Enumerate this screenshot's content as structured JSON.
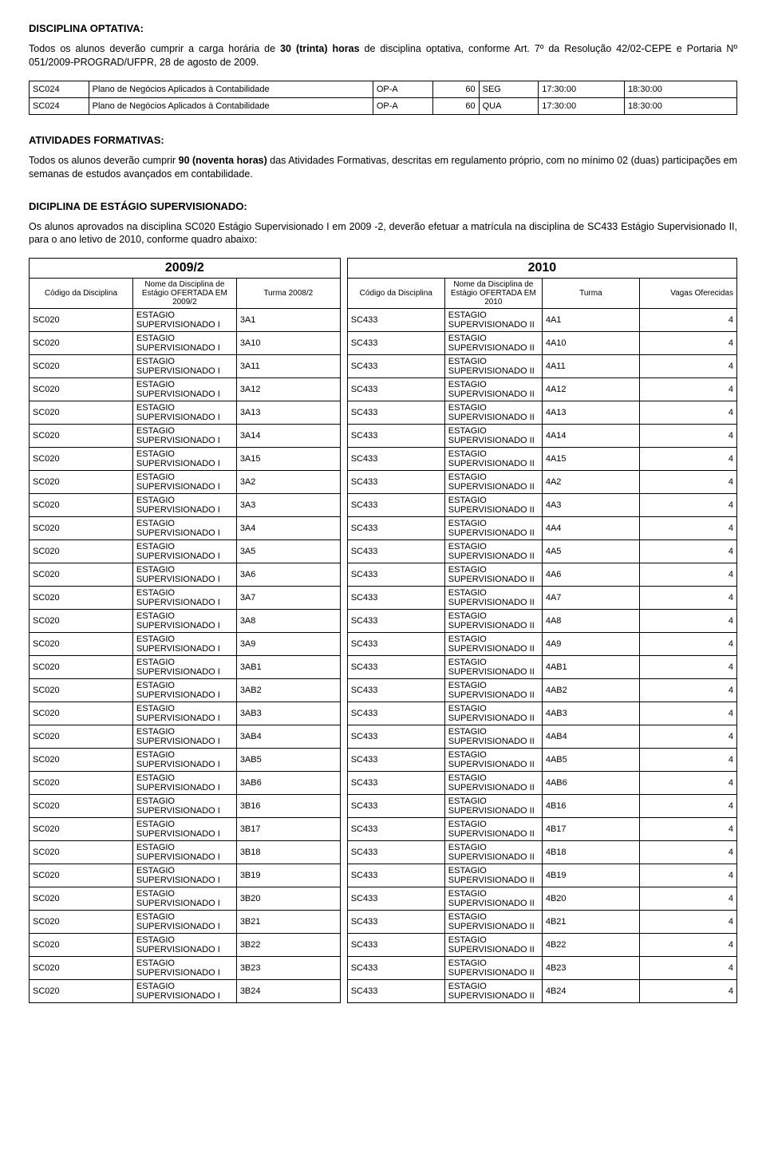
{
  "sec1": {
    "title": "DISCIPLINA OPTATIVA:",
    "para_parts": {
      "p1": "Todos os alunos deverão cumprir a carga horária de ",
      "p2_bold": "30 (trinta) horas",
      "p3": " de disciplina optativa, conforme Art. 7º da Resolução 42/02-CEPE e Portaria Nº 051/2009-PROGRAD/UFPR, 28 de agosto de 2009."
    }
  },
  "table1": {
    "rows": [
      [
        "SC024",
        "Plano de Negócios Aplicados à Contabilidade",
        "OP-A",
        "60",
        "SEG",
        "17:30:00",
        "18:30:00"
      ],
      [
        "SC024",
        "Plano de Negócios Aplicados à Contabilidade",
        "OP-A",
        "60",
        "QUA",
        "17:30:00",
        "18:30:00"
      ]
    ]
  },
  "sec2": {
    "title": "ATIVIDADES FORMATIVAS:",
    "para_parts": {
      "p1": "Todos os alunos deverão cumprir ",
      "p2_bold": "90 (noventa horas)",
      "p3": " das Atividades Formativas, descritas em regulamento próprio, com no mínimo 02 (duas) participações em semanas de estudos avançados em contabilidade."
    }
  },
  "sec3": {
    "title": "DICIPLINA DE ESTÁGIO SUPERVISIONADO:",
    "para": "Os alunos aprovados na disciplina SC020 Estágio Supervisionado I em 2009 -2, deverão efetuar a matrícula na disciplina de SC433 Estágio Supervisionado II, para o ano letivo de 2010, conforme quadro abaixo:"
  },
  "combined": {
    "left_year": "2009/2",
    "right_year": "2010",
    "left_headers": [
      "Código da Disciplina",
      "Nome da Disciplina de Estágio OFERTADA EM 2009/2",
      "Turma 2008/2"
    ],
    "right_headers": [
      "Código da Disciplina",
      "Nome da Disciplina de Estágio OFERTADA EM 2010",
      "Turma",
      "Vagas Oferecidas"
    ],
    "left_code": "SC020",
    "left_name": "ESTAGIO SUPERVISIONADO I",
    "right_code": "SC433",
    "right_name": "ESTAGIO SUPERVISIONADO II",
    "vagas": "4",
    "rows": [
      {
        "lt": "3A1",
        "rt": "4A1"
      },
      {
        "lt": "3A10",
        "rt": "4A10"
      },
      {
        "lt": "3A11",
        "rt": "4A11"
      },
      {
        "lt": "3A12",
        "rt": "4A12"
      },
      {
        "lt": "3A13",
        "rt": "4A13"
      },
      {
        "lt": "3A14",
        "rt": "4A14"
      },
      {
        "lt": "3A15",
        "rt": "4A15"
      },
      {
        "lt": "3A2",
        "rt": "4A2"
      },
      {
        "lt": "3A3",
        "rt": "4A3"
      },
      {
        "lt": "3A4",
        "rt": "4A4"
      },
      {
        "lt": "3A5",
        "rt": "4A5"
      },
      {
        "lt": "3A6",
        "rt": "4A6"
      },
      {
        "lt": "3A7",
        "rt": "4A7"
      },
      {
        "lt": "3A8",
        "rt": "4A8"
      },
      {
        "lt": "3A9",
        "rt": "4A9"
      },
      {
        "lt": "3AB1",
        "rt": "4AB1"
      },
      {
        "lt": "3AB2",
        "rt": "4AB2"
      },
      {
        "lt": "3AB3",
        "rt": "4AB3"
      },
      {
        "lt": "3AB4",
        "rt": "4AB4"
      },
      {
        "lt": "3AB5",
        "rt": "4AB5"
      },
      {
        "lt": "3AB6",
        "rt": "4AB6"
      },
      {
        "lt": "3B16",
        "rt": "4B16"
      },
      {
        "lt": "3B17",
        "rt": "4B17"
      },
      {
        "lt": "3B18",
        "rt": "4B18"
      },
      {
        "lt": "3B19",
        "rt": "4B19"
      },
      {
        "lt": "3B20",
        "rt": "4B20"
      },
      {
        "lt": "3B21",
        "rt": "4B21"
      },
      {
        "lt": "3B22",
        "rt": "4B22"
      },
      {
        "lt": "3B23",
        "rt": "4B23"
      },
      {
        "lt": "3B24",
        "rt": "4B24"
      }
    ]
  }
}
